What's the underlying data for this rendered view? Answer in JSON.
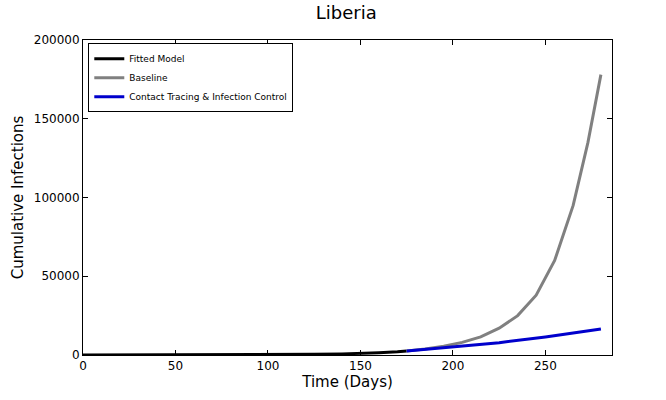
{
  "chart_data": {
    "type": "line",
    "title": "Liberia",
    "x_label": "Time (Days)",
    "y_label": "Cumulative Infections",
    "series": [
      {
        "name": "Fitted Model",
        "color": "#000000",
        "x": [
          0,
          25,
          50,
          75,
          100,
          125,
          140,
          150,
          160,
          170,
          175
        ],
        "values": [
          10,
          20,
          40,
          80,
          180,
          400,
          700,
          1000,
          1500,
          2100,
          2600
        ]
      },
      {
        "name": "Baseline",
        "color": "#808080",
        "x": [
          175,
          185,
          195,
          205,
          215,
          225,
          235,
          245,
          255,
          265,
          273,
          280
        ],
        "values": [
          2600,
          3800,
          5500,
          8000,
          11500,
          17000,
          25000,
          38000,
          60000,
          95000,
          135000,
          178000
        ]
      },
      {
        "name": "Contact Tracing & Infection Control",
        "color": "#0000cc",
        "x": [
          175,
          200,
          225,
          250,
          265,
          280
        ],
        "values": [
          2600,
          5000,
          7800,
          11500,
          14000,
          16500
        ]
      }
    ],
    "xlim": [
      0,
      286
    ],
    "xticks": [
      0,
      50,
      100,
      150,
      200,
      250
    ],
    "ylim": [
      0,
      200000
    ],
    "yticks": [
      0,
      50000,
      100000,
      150000,
      200000
    ],
    "grid": false,
    "legend": "upper left"
  }
}
